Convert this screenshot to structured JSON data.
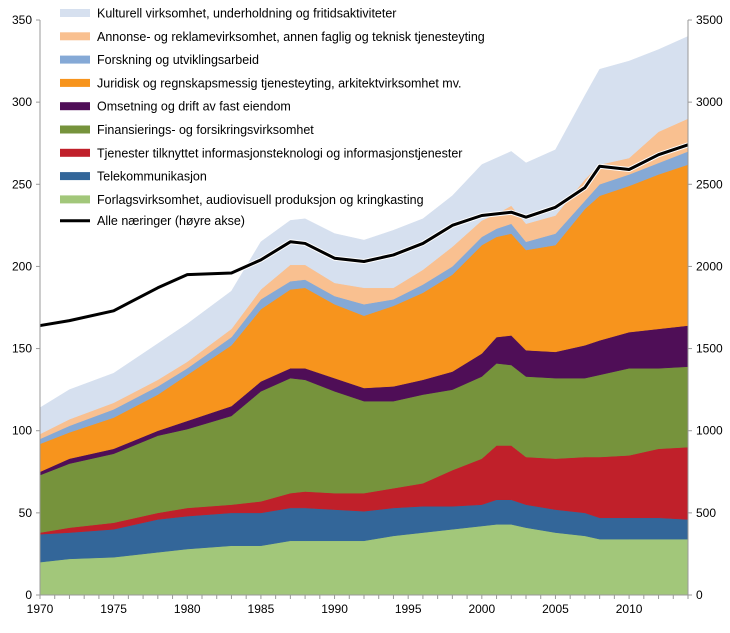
{
  "chart_data": {
    "type": "area",
    "stacked": true,
    "x": [
      1970,
      1972,
      1975,
      1978,
      1980,
      1983,
      1985,
      1987,
      1988,
      1990,
      1992,
      1994,
      1996,
      1998,
      2000,
      2001,
      2002,
      2003,
      2005,
      2007,
      2008,
      2010,
      2012,
      2014
    ],
    "xlim": [
      1970,
      2014
    ],
    "x_tick_labels": [
      "1970",
      "1975",
      "1980",
      "1985",
      "1990",
      "1995",
      "2000",
      "2005",
      "2010"
    ],
    "ylim_left": [
      0,
      350
    ],
    "y_tick_labels_left": [
      "0",
      "50",
      "100",
      "150",
      "200",
      "250",
      "300",
      "350"
    ],
    "ylim_right": [
      0,
      3500
    ],
    "y_tick_labels_right": [
      "0",
      "500",
      "1000",
      "1500",
      "2000",
      "2500",
      "3000",
      "3500"
    ],
    "grid": false,
    "legend_position": "top-left",
    "series": [
      {
        "name": "Forlagsvirksomhet, audiovisuell produksjon og kringkasting",
        "color": "#a2c77a",
        "values": [
          20,
          22,
          23,
          26,
          28,
          30,
          30,
          33,
          33,
          33,
          33,
          36,
          38,
          40,
          42,
          43,
          43,
          41,
          38,
          36,
          34,
          34,
          34,
          34
        ]
      },
      {
        "name": "Telekommunikasjon",
        "color": "#336699",
        "values": [
          17,
          16,
          17,
          20,
          20,
          20,
          20,
          20,
          20,
          19,
          18,
          17,
          16,
          14,
          13,
          15,
          15,
          14,
          14,
          14,
          13,
          13,
          13,
          12
        ]
      },
      {
        "name": "Tjenester tilknyttet informasjonsteknologi og informasjonstjenester",
        "color": "#c0202a",
        "values": [
          1,
          3,
          4,
          4,
          5,
          5,
          7,
          9,
          10,
          10,
          11,
          12,
          14,
          22,
          28,
          33,
          33,
          29,
          31,
          34,
          37,
          38,
          42,
          44
        ]
      },
      {
        "name": "Finansierings- og forsikringsvirksomhet",
        "color": "#76933c",
        "values": [
          35,
          39,
          42,
          47,
          48,
          54,
          67,
          70,
          68,
          62,
          56,
          53,
          54,
          49,
          50,
          50,
          49,
          49,
          49,
          48,
          50,
          53,
          49,
          49
        ]
      },
      {
        "name": "Omsetning og drift av fast eiendom",
        "color": "#4f0e57",
        "values": [
          2,
          3,
          3,
          3,
          5,
          6,
          6,
          6,
          7,
          8,
          8,
          9,
          9,
          11,
          14,
          16,
          18,
          16,
          16,
          20,
          21,
          22,
          24,
          25
        ]
      },
      {
        "name": "Juridisk og regnskapsmessig tjenesteyting, arkitektvirksomhet mv.",
        "color": "#f7941d",
        "values": [
          17,
          16,
          19,
          22,
          28,
          37,
          44,
          48,
          49,
          45,
          44,
          49,
          53,
          59,
          66,
          61,
          62,
          61,
          65,
          83,
          88,
          89,
          94,
          98
        ]
      },
      {
        "name": "Forskning og utviklingsarbeid",
        "color": "#85a9d6",
        "values": [
          3,
          4,
          5,
          5,
          4,
          5,
          6,
          5,
          5,
          5,
          7,
          4,
          5,
          5,
          5,
          5,
          6,
          5,
          7,
          5,
          7,
          7,
          7,
          8
        ]
      },
      {
        "name": "Annonse- og reklamevirksomhet, annen faglig og teknisk tjenesteyting",
        "color": "#f9c090",
        "values": [
          3,
          4,
          4,
          4,
          4,
          5,
          6,
          10,
          9,
          8,
          10,
          7,
          9,
          12,
          10,
          9,
          11,
          11,
          11,
          13,
          12,
          10,
          19,
          20
        ]
      },
      {
        "name": "Kulturell virksomhet, underholdning og fritidsaktiviteter",
        "color": "#d6e0ef",
        "values": [
          16,
          18,
          18,
          22,
          23,
          23,
          29,
          27,
          28,
          30,
          29,
          35,
          31,
          31,
          34,
          34,
          33,
          37,
          40,
          51,
          58,
          59,
          50,
          50
        ]
      }
    ],
    "line": {
      "name": "Alle næringer (høyre akse)",
      "axis": "right",
      "color": "#000000",
      "values": [
        1640,
        1670,
        1730,
        1870,
        1950,
        1960,
        2040,
        2150,
        2140,
        2050,
        2030,
        2070,
        2140,
        2250,
        2310,
        2320,
        2330,
        2300,
        2360,
        2480,
        2610,
        2590,
        2680,
        2740
      ]
    },
    "legend_order": [
      8,
      7,
      6,
      5,
      4,
      3,
      2,
      1,
      0
    ]
  }
}
